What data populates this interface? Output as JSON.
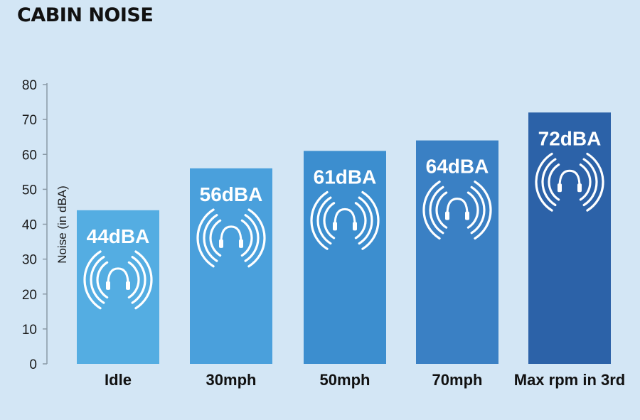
{
  "chart_data": {
    "type": "bar",
    "title": "CABIN NOISE",
    "ylabel": "Noise (in dBA)",
    "xlabel": "",
    "categories": [
      "Idle",
      "30mph",
      "50mph",
      "70mph",
      "Max rpm in 3rd"
    ],
    "values": [
      44,
      56,
      61,
      64,
      72
    ],
    "data_labels": [
      "44dBA",
      "56dBA",
      "61dBA",
      "64dBA",
      "72dBA"
    ],
    "ylim": [
      0,
      80
    ],
    "yticks": [
      0,
      10,
      20,
      30,
      40,
      50,
      60,
      70,
      80
    ],
    "bar_colors": [
      "#54ade2",
      "#4aa0dc",
      "#3c8ecf",
      "#3a80c4",
      "#2c62a8"
    ],
    "bar_icon": "headphones-sound-waves-icon",
    "grid": false,
    "legend": "none"
  }
}
